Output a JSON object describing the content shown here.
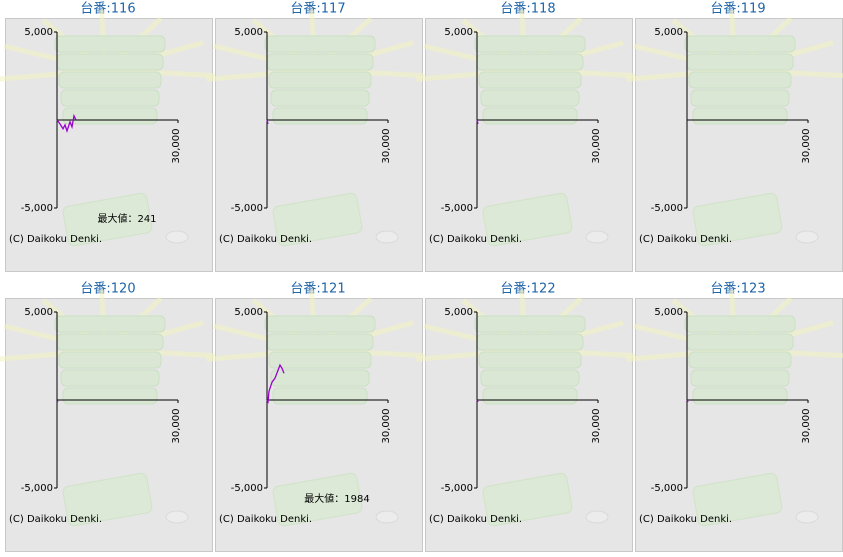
{
  "chart_data": [
    {
      "type": "line",
      "title": "台番:116",
      "x": [
        0,
        740,
        1490,
        1980,
        2480,
        3220,
        3720,
        4210,
        4710
      ],
      "values": [
        0,
        -220,
        -500,
        -280,
        -620,
        -110,
        -390,
        241,
        0
      ],
      "color": "#9a00d0",
      "xlim": [
        0,
        30000
      ],
      "ylim": [
        -5000,
        5000
      ],
      "xticks": [
        {
          "value": 30000,
          "label": "30,000"
        }
      ],
      "yticks": [
        {
          "value": 5000,
          "label": "5,000"
        },
        {
          "value": -5000,
          "label": "-5,000"
        }
      ],
      "footer": "(C) Daikoku Denki.",
      "annotation": "最大値：241"
    },
    {
      "type": "line",
      "title": "台番:117",
      "x": [
        0,
        250
      ],
      "values": [
        0,
        -220
      ],
      "color": "#9a00d0",
      "xlim": [
        0,
        30000
      ],
      "ylim": [
        -5000,
        5000
      ],
      "xticks": [
        {
          "value": 30000,
          "label": "30,000"
        }
      ],
      "yticks": [
        {
          "value": 5000,
          "label": "5,000"
        },
        {
          "value": -5000,
          "label": "-5,000"
        }
      ],
      "footer": "(C) Daikoku Denki."
    },
    {
      "type": "line",
      "title": "台番:118",
      "x": [
        0,
        250
      ],
      "values": [
        0,
        -220
      ],
      "color": "#9a00d0",
      "xlim": [
        0,
        30000
      ],
      "ylim": [
        -5000,
        5000
      ],
      "xticks": [
        {
          "value": 30000,
          "label": "30,000"
        }
      ],
      "yticks": [
        {
          "value": 5000,
          "label": "5,000"
        },
        {
          "value": -5000,
          "label": "-5,000"
        }
      ],
      "footer": "(C) Daikoku Denki."
    },
    {
      "type": "line",
      "title": "台番:119",
      "x": [],
      "values": [],
      "color": "#9a00d0",
      "xlim": [
        0,
        30000
      ],
      "ylim": [
        -5000,
        5000
      ],
      "xticks": [
        {
          "value": 30000,
          "label": "30,000"
        }
      ],
      "yticks": [
        {
          "value": 5000,
          "label": "5,000"
        },
        {
          "value": -5000,
          "label": "-5,000"
        }
      ],
      "footer": "(C) Daikoku Denki."
    },
    {
      "type": "line",
      "title": "台番:120",
      "x": [
        0,
        250
      ],
      "values": [
        -50,
        -110
      ],
      "color": "#9a00d0",
      "xlim": [
        0,
        30000
      ],
      "ylim": [
        -5000,
        5000
      ],
      "xticks": [
        {
          "value": 30000,
          "label": "30,000"
        }
      ],
      "yticks": [
        {
          "value": 5000,
          "label": "5,000"
        },
        {
          "value": -5000,
          "label": "-5,000"
        }
      ],
      "footer": "(C) Daikoku Denki."
    },
    {
      "type": "line",
      "title": "台番:121",
      "x": [
        0,
        250,
        500,
        1240,
        1990,
        2730,
        3220,
        3720,
        4210
      ],
      "values": [
        0,
        -100,
        500,
        1010,
        1240,
        1690,
        1984,
        1800,
        1520
      ],
      "color": "#9a00d0",
      "xlim": [
        0,
        30000
      ],
      "ylim": [
        -5000,
        5000
      ],
      "xticks": [
        {
          "value": 30000,
          "label": "30,000"
        }
      ],
      "yticks": [
        {
          "value": 5000,
          "label": "5,000"
        },
        {
          "value": -5000,
          "label": "-5,000"
        }
      ],
      "footer": "(C) Daikoku Denki.",
      "annotation": "最大値：1984"
    },
    {
      "type": "line",
      "title": "台番:122",
      "x": [
        0,
        250
      ],
      "values": [
        0,
        -110
      ],
      "color": "#9a00d0",
      "xlim": [
        0,
        30000
      ],
      "ylim": [
        -5000,
        5000
      ],
      "xticks": [
        {
          "value": 30000,
          "label": "30,000"
        }
      ],
      "yticks": [
        {
          "value": 5000,
          "label": "5,000"
        },
        {
          "value": -5000,
          "label": "-5,000"
        }
      ],
      "footer": "(C) Daikoku Denki."
    },
    {
      "type": "line",
      "title": "台番:123",
      "x": [
        0,
        250
      ],
      "values": [
        0,
        -110
      ],
      "color": "#9a00d0",
      "xlim": [
        0,
        30000
      ],
      "ylim": [
        -5000,
        5000
      ],
      "xticks": [
        {
          "value": 30000,
          "label": "30,000"
        }
      ],
      "yticks": [
        {
          "value": 5000,
          "label": "5,000"
        },
        {
          "value": -5000,
          "label": "-5,000"
        }
      ],
      "footer": "(C) Daikoku Denki."
    }
  ]
}
